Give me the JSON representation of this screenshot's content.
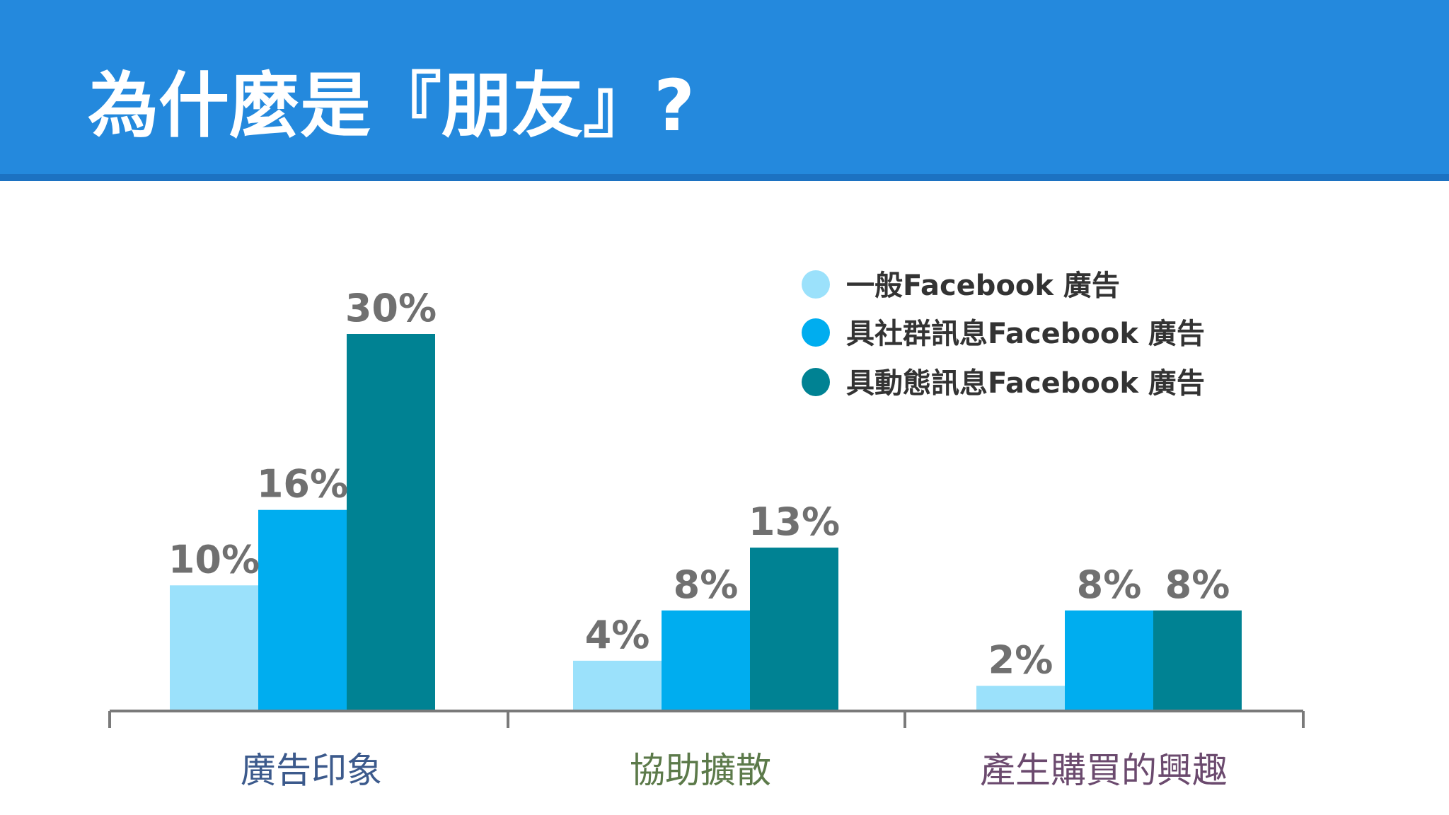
{
  "slide": {
    "title": "為什麼是『朋友』?"
  },
  "colors": {
    "header": "#2489dd",
    "series": [
      "#9be1fb",
      "#00adef",
      "#008293"
    ],
    "categories": [
      "#3c5a8c",
      "#5c7a4a",
      "#6b4a6e"
    ],
    "axis": "#7a7a7a"
  },
  "chart_data": {
    "type": "bar",
    "categories": [
      "廣告印象",
      "協助擴散",
      "產生購買的興趣"
    ],
    "series": [
      {
        "name": "一般Facebook 廣告",
        "values": [
          10,
          4,
          2
        ]
      },
      {
        "name": "具社群訊息Facebook 廣告",
        "values": [
          16,
          8,
          8
        ]
      },
      {
        "name": "具動態訊息Facebook 廣告",
        "values": [
          30,
          13,
          8
        ]
      }
    ],
    "value_labels": [
      [
        "10%",
        "4%",
        "2%"
      ],
      [
        "16%",
        "8%",
        "8%"
      ],
      [
        "30%",
        "13%",
        "8%"
      ]
    ],
    "ylim": [
      0,
      30
    ],
    "grid": false,
    "legend": "top-right",
    "title": "",
    "xlabel": "",
    "ylabel": ""
  }
}
